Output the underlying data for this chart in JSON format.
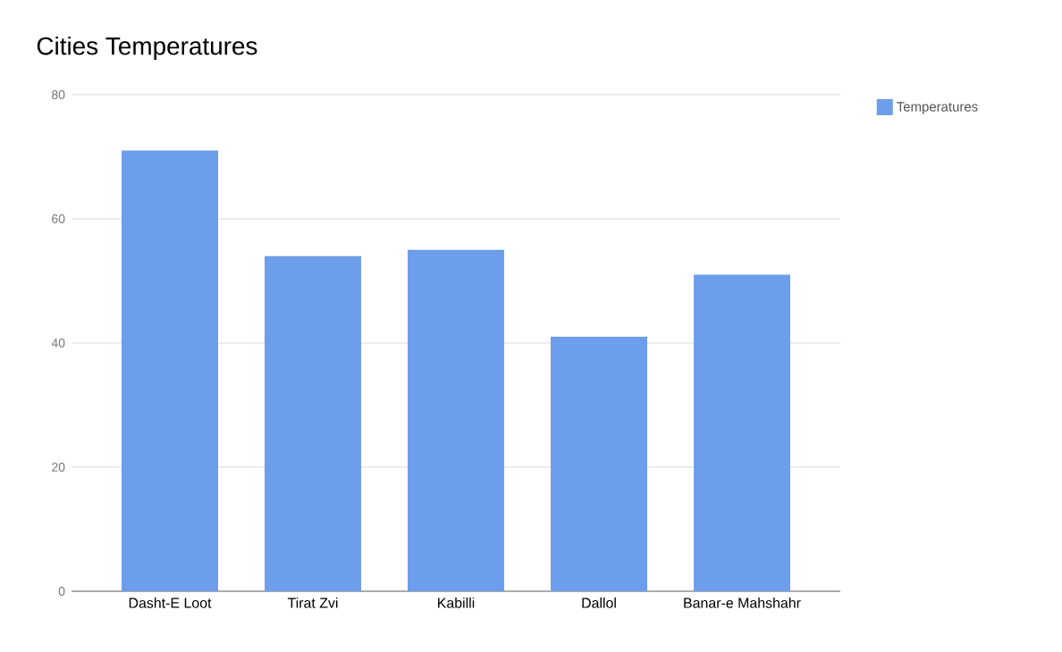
{
  "chart_data": {
    "type": "bar",
    "title": "Cities Temperatures",
    "categories": [
      "Dasht-E Loot",
      "Tirat Zvi",
      "Kabilli",
      "Dallol",
      "Banar-e Mahshahr"
    ],
    "series": [
      {
        "name": "Temperatures",
        "color": "#6d9eeb",
        "values": [
          71,
          54,
          55,
          41,
          51
        ]
      }
    ],
    "ylim": [
      0,
      80
    ],
    "yticks": [
      0,
      20,
      40,
      60,
      80
    ],
    "grid": "y",
    "legend": "top right"
  }
}
